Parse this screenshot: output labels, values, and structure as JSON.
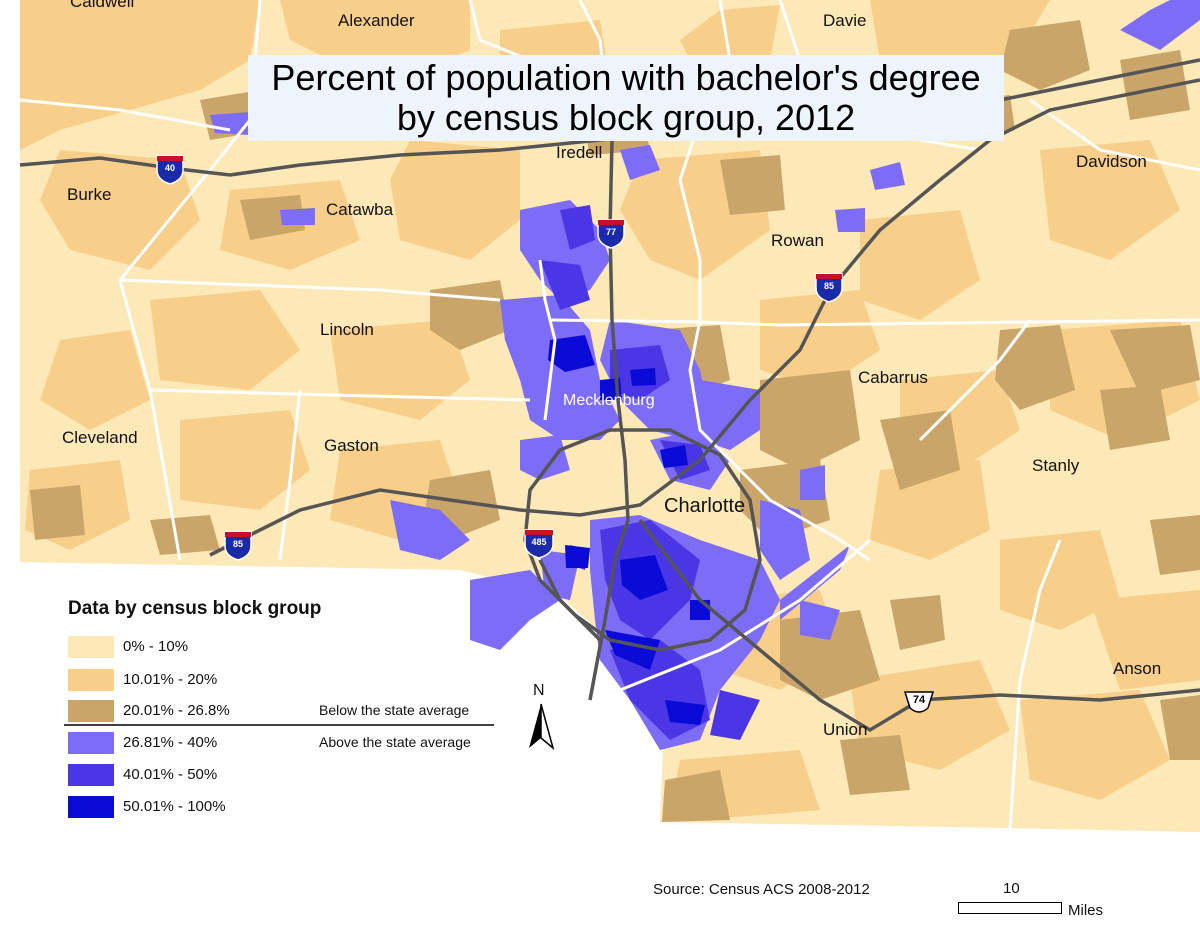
{
  "title": {
    "line1": "Percent of population with bachelor's degree",
    "line2": "by census block group, 2012"
  },
  "colors": {
    "background": "#ffffff",
    "class_0_10": "#fde8b8",
    "class_10_20": "#f8cf8a",
    "class_20_268": "#c9a56a",
    "class_2681_40": "#7d6cf5",
    "class_40_50": "#4b36e6",
    "class_50_100": "#0b0bd8",
    "county_boundary": "#ffffff",
    "highway": "#555555"
  },
  "counties": [
    {
      "name": "Caldwell"
    },
    {
      "name": "Alexander"
    },
    {
      "name": "Davie"
    },
    {
      "name": "Iredell"
    },
    {
      "name": "Davidson"
    },
    {
      "name": "Burke"
    },
    {
      "name": "Catawba"
    },
    {
      "name": "Rowan"
    },
    {
      "name": "Lincoln"
    },
    {
      "name": "Cabarrus"
    },
    {
      "name": "Mecklenburg"
    },
    {
      "name": "Cleveland"
    },
    {
      "name": "Gaston"
    },
    {
      "name": "Stanly"
    },
    {
      "name": "Anson"
    },
    {
      "name": "Union"
    }
  ],
  "city": "Charlotte",
  "highways": {
    "i40": "40",
    "i77": "77",
    "i85_north": "85",
    "i85_west": "85",
    "i485": "485",
    "us74": "74"
  },
  "legend": {
    "title": "Data by census block group",
    "items": [
      {
        "label": "0% - 10%",
        "color": "#fde8b8"
      },
      {
        "label": "10.01% - 20%",
        "color": "#f8cf8a"
      },
      {
        "label": "20.01% - 26.8%",
        "color": "#c9a56a"
      },
      {
        "label": "26.81% - 40%",
        "color": "#7d6cf5"
      },
      {
        "label": "40.01% - 50%",
        "color": "#4b36e6"
      },
      {
        "label": "50.01% - 100%",
        "color": "#0b0bd8"
      }
    ],
    "below_note": "Below the state average",
    "above_note": "Above the state average"
  },
  "north_arrow": {
    "label": "N"
  },
  "source": "Source: Census ACS 2008-2012",
  "scale": {
    "value": "10",
    "unit": "Miles"
  }
}
